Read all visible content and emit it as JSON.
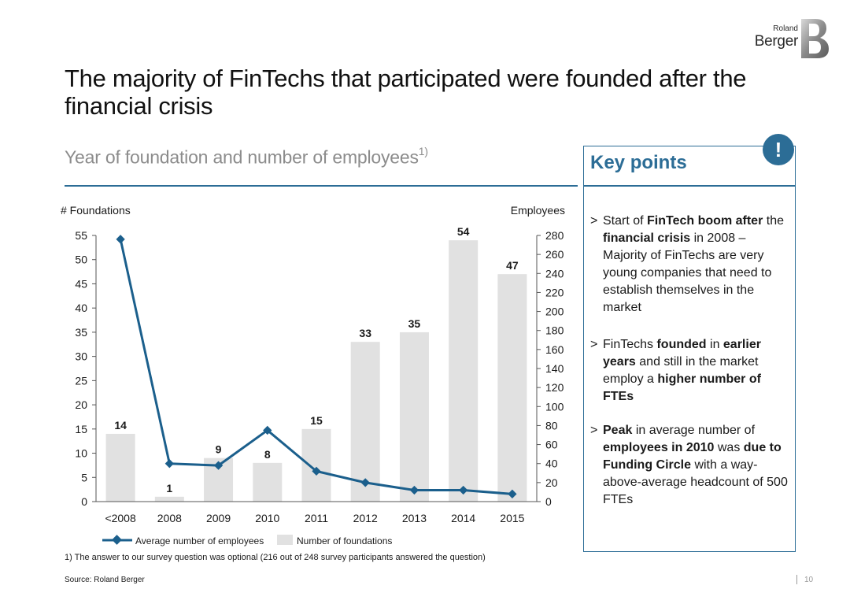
{
  "brand": {
    "line1": "Roland",
    "line2": "Berger",
    "logo_letter": "B"
  },
  "title": "The majority of FinTechs that participated were founded after the financial crisis",
  "subtitle": "Year of foundation and number of employees",
  "subtitle_sup": "1)",
  "key_points": {
    "title": "Key points",
    "icon": "!",
    "items": [
      {
        "marker": ">",
        "parts": [
          {
            "t": "Start of ",
            "b": false
          },
          {
            "t": "FinTech boom after",
            "b": true
          },
          {
            "t": " the ",
            "b": false
          },
          {
            "t": "financial crisis",
            "b": true
          },
          {
            "t": " in 2008 – Majority of FinTechs are very young companies that need to establish themselves in the market",
            "b": false
          }
        ]
      },
      {
        "marker": ">",
        "parts": [
          {
            "t": "FinTechs ",
            "b": false
          },
          {
            "t": "founded",
            "b": true
          },
          {
            "t": " in ",
            "b": false
          },
          {
            "t": "earlier years",
            "b": true
          },
          {
            "t": " and still in the market employ a ",
            "b": false
          },
          {
            "t": "higher number of FTEs",
            "b": true
          }
        ]
      },
      {
        "marker": ">",
        "parts": [
          {
            "t": "Peak",
            "b": true
          },
          {
            "t": " in average number of ",
            "b": false
          },
          {
            "t": "employees in 2010",
            "b": true
          },
          {
            "t": " was ",
            "b": false
          },
          {
            "t": "due to Funding Circle",
            "b": true
          },
          {
            "t": " with a way-above-average headcount of 500 FTEs",
            "b": false
          }
        ]
      }
    ]
  },
  "chart_data": {
    "type": "bar",
    "categories": [
      "<2008",
      "2008",
      "2009",
      "2010",
      "2011",
      "2012",
      "2013",
      "2014",
      "2015"
    ],
    "series": [
      {
        "name": "Number of foundations",
        "kind": "bar",
        "axis": "left",
        "color": "#e1e1e1",
        "values": [
          14,
          1,
          9,
          8,
          15,
          33,
          35,
          54,
          47
        ]
      },
      {
        "name": "Average number of employees",
        "kind": "line",
        "axis": "right",
        "color": "#1b5f8c",
        "values": [
          276,
          40,
          38,
          75,
          32,
          20,
          12,
          12,
          8
        ]
      }
    ],
    "left_axis": {
      "label": "# Foundations",
      "min": 0,
      "max": 55,
      "ticks": [
        0,
        5,
        10,
        15,
        20,
        25,
        30,
        35,
        40,
        45,
        50,
        55
      ]
    },
    "right_axis": {
      "label": "Employees",
      "min": 0,
      "max": 280,
      "ticks": [
        0,
        20,
        40,
        60,
        80,
        100,
        120,
        140,
        160,
        180,
        200,
        220,
        240,
        260,
        280
      ]
    },
    "legend": [
      "Average number of employees",
      "Number of foundations"
    ],
    "legend_position": "bottom-left",
    "grid": false
  },
  "footnote": "1) The answer to our survey question was optional (216 out of 248 survey participants answered the question)",
  "source": "Source: Roland Berger",
  "page_number": "10",
  "colors": {
    "accent": "#2c6d96",
    "line": "#1b5f8c",
    "bar": "#e1e1e1",
    "subtitle": "#8c8c8c"
  }
}
